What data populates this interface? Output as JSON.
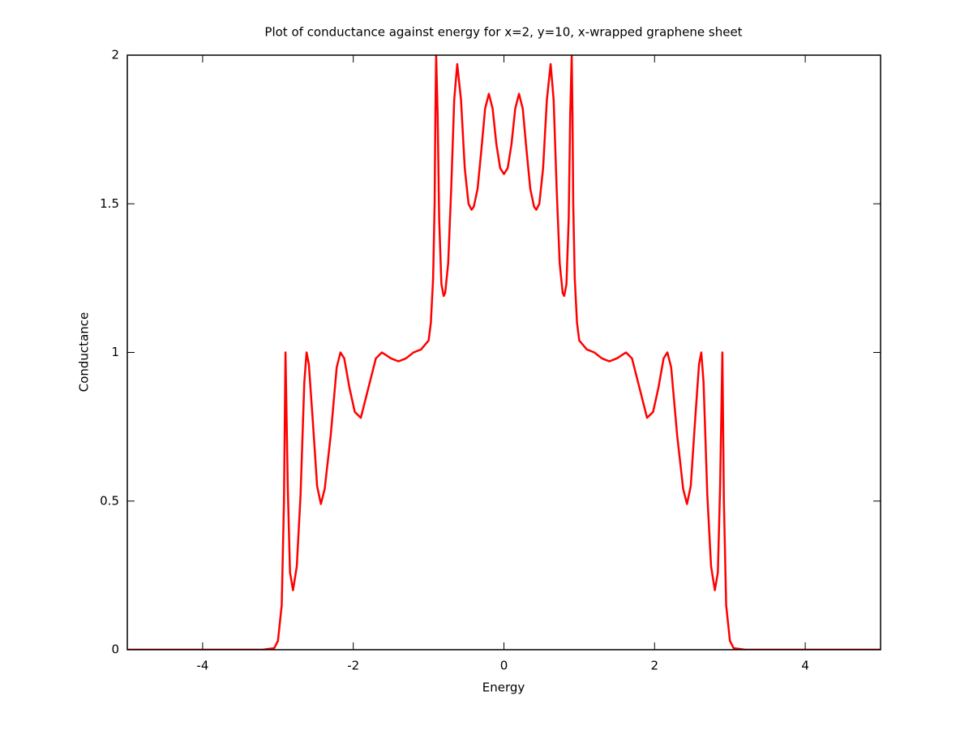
{
  "chart_data": {
    "type": "line",
    "title": "Plot of conductance against energy for x=2, y=10, x-wrapped graphene sheet",
    "xlabel": "Energy",
    "ylabel": "Conductance",
    "xlim": [
      -5,
      5
    ],
    "ylim": [
      0,
      2
    ],
    "xticks": [
      -4,
      -2,
      0,
      2,
      4
    ],
    "yticks": [
      0,
      0.5,
      1,
      1.5,
      2
    ],
    "grid": false,
    "x": [
      -5,
      -3.2,
      -3.05,
      -3.0,
      -2.95,
      -2.92,
      -2.9,
      -2.87,
      -2.84,
      -2.8,
      -2.75,
      -2.7,
      -2.65,
      -2.62,
      -2.59,
      -2.54,
      -2.48,
      -2.43,
      -2.38,
      -2.3,
      -2.22,
      -2.17,
      -2.12,
      -2.05,
      -1.98,
      -1.9,
      -1.8,
      -1.7,
      -1.62,
      -1.5,
      -1.4,
      -1.3,
      -1.2,
      -1.1,
      -1.0,
      -0.97,
      -0.94,
      -0.92,
      -0.91,
      -0.9,
      -0.88,
      -0.86,
      -0.83,
      -0.8,
      -0.78,
      -0.74,
      -0.7,
      -0.66,
      -0.62,
      -0.57,
      -0.52,
      -0.47,
      -0.43,
      -0.4,
      -0.35,
      -0.3,
      -0.25,
      -0.2,
      -0.15,
      -0.1,
      -0.05,
      0,
      0.05,
      0.1,
      0.15,
      0.2,
      0.25,
      0.3,
      0.35,
      0.4,
      0.43,
      0.47,
      0.52,
      0.57,
      0.62,
      0.66,
      0.7,
      0.74,
      0.78,
      0.8,
      0.83,
      0.86,
      0.88,
      0.9,
      0.91,
      0.92,
      0.94,
      0.97,
      1.0,
      1.1,
      1.2,
      1.3,
      1.4,
      1.5,
      1.62,
      1.7,
      1.8,
      1.9,
      1.98,
      2.05,
      2.12,
      2.17,
      2.22,
      2.3,
      2.38,
      2.43,
      2.48,
      2.54,
      2.59,
      2.62,
      2.65,
      2.7,
      2.75,
      2.8,
      2.84,
      2.87,
      2.9,
      2.92,
      2.95,
      3.0,
      3.05,
      3.2,
      5
    ],
    "series": [
      {
        "color": "#ff0000",
        "values": [
          0,
          0,
          0.005,
          0.03,
          0.15,
          0.5,
          1.0,
          0.55,
          0.26,
          0.2,
          0.28,
          0.52,
          0.9,
          1.0,
          0.96,
          0.78,
          0.55,
          0.49,
          0.54,
          0.72,
          0.95,
          1.0,
          0.98,
          0.88,
          0.8,
          0.78,
          0.88,
          0.98,
          1.0,
          0.98,
          0.97,
          0.98,
          1.0,
          1.01,
          1.04,
          1.1,
          1.25,
          1.5,
          1.8,
          2.0,
          1.8,
          1.45,
          1.23,
          1.19,
          1.2,
          1.3,
          1.55,
          1.85,
          1.97,
          1.85,
          1.62,
          1.5,
          1.48,
          1.49,
          1.55,
          1.68,
          1.82,
          1.87,
          1.82,
          1.7,
          1.62,
          1.6,
          1.62,
          1.7,
          1.82,
          1.87,
          1.82,
          1.68,
          1.55,
          1.49,
          1.48,
          1.5,
          1.62,
          1.85,
          1.97,
          1.85,
          1.55,
          1.3,
          1.2,
          1.19,
          1.23,
          1.45,
          1.8,
          2.0,
          1.8,
          1.5,
          1.25,
          1.1,
          1.04,
          1.01,
          1.0,
          0.98,
          0.97,
          0.98,
          1.0,
          0.98,
          0.88,
          0.78,
          0.8,
          0.88,
          0.98,
          1.0,
          0.95,
          0.72,
          0.54,
          0.49,
          0.55,
          0.78,
          0.96,
          1.0,
          0.9,
          0.52,
          0.28,
          0.2,
          0.26,
          0.55,
          1.0,
          0.5,
          0.15,
          0.03,
          0.005,
          0,
          0
        ]
      }
    ]
  }
}
